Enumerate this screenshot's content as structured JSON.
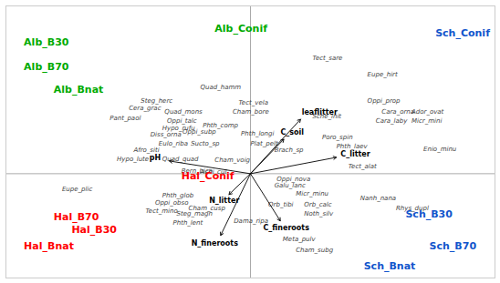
{
  "chart_data": {
    "type": "biplot",
    "xlim": [
      -2.05,
      2.05
    ],
    "ylim": [
      -1.15,
      1.85
    ],
    "xticks": [
      0
    ],
    "yticks": [
      0
    ],
    "grid": true,
    "tick_labels": false,
    "arrow_origin": [
      0,
      0
    ],
    "sites": [
      {
        "text": "Alb_B30",
        "x": -1.9,
        "y": 1.45,
        "color": "#00aa00"
      },
      {
        "text": "Alb_B70",
        "x": -1.9,
        "y": 1.18,
        "color": "#00aa00"
      },
      {
        "text": "Alb_Bnat",
        "x": -1.65,
        "y": 0.93,
        "color": "#00aa00"
      },
      {
        "text": "Alb_Conif",
        "x": -0.3,
        "y": 1.6,
        "color": "#00aa00"
      },
      {
        "text": "Hal_Conif",
        "x": -0.58,
        "y": -0.03,
        "color": "#ff0000"
      },
      {
        "text": "Hal_B70",
        "x": -1.65,
        "y": -0.48,
        "color": "#ff0000"
      },
      {
        "text": "Hal_B30",
        "x": -1.5,
        "y": -0.62,
        "color": "#ff0000"
      },
      {
        "text": "Hal_Bnat",
        "x": -1.9,
        "y": -0.8,
        "color": "#ff0000"
      },
      {
        "text": "Sch_Conif",
        "x": 1.55,
        "y": 1.55,
        "color": "#1155cc"
      },
      {
        "text": "Sch_B30",
        "x": 1.3,
        "y": -0.45,
        "color": "#1155cc"
      },
      {
        "text": "Sch_B70",
        "x": 1.5,
        "y": -0.8,
        "color": "#1155cc"
      },
      {
        "text": "Sch_Bnat",
        "x": 0.95,
        "y": -1.02,
        "color": "#1155cc"
      }
    ],
    "arrows": [
      {
        "label": "leaflitter",
        "x": 0.42,
        "y": 0.6,
        "label_x": 0.58,
        "label_y": 0.68
      },
      {
        "label": "C_soil",
        "x": 0.28,
        "y": 0.38,
        "label_x": 0.35,
        "label_y": 0.46
      },
      {
        "label": "C_litter",
        "x": 0.72,
        "y": 0.18,
        "label_x": 0.88,
        "label_y": 0.22
      },
      {
        "label": "pH",
        "x": -0.68,
        "y": 0.14,
        "label_x": -0.8,
        "label_y": 0.18
      },
      {
        "label": "N_litter",
        "x": -0.18,
        "y": -0.23,
        "label_x": -0.22,
        "label_y": -0.3
      },
      {
        "label": "C_fineroots",
        "x": 0.25,
        "y": -0.52,
        "label_x": 0.3,
        "label_y": -0.6
      },
      {
        "label": "N_fineroots",
        "x": -0.25,
        "y": -0.68,
        "label_x": -0.3,
        "label_y": -0.77
      }
    ],
    "species": [
      {
        "text": "Tect_sare",
        "x": 0.52,
        "y": 1.28
      },
      {
        "text": "Eupe_hirt",
        "x": 0.98,
        "y": 1.1
      },
      {
        "text": "Oppi_prop",
        "x": 0.98,
        "y": 0.8
      },
      {
        "text": "Cara_orna",
        "x": 1.1,
        "y": 0.68
      },
      {
        "text": "Ador_ovat",
        "x": 1.35,
        "y": 0.68
      },
      {
        "text": "Cara_laby",
        "x": 1.05,
        "y": 0.58
      },
      {
        "text": "Micr_mini",
        "x": 1.35,
        "y": 0.58
      },
      {
        "text": "Sche_init",
        "x": 0.52,
        "y": 0.63
      },
      {
        "text": "Poro_spin",
        "x": 0.6,
        "y": 0.4
      },
      {
        "text": "Phth_laev",
        "x": 0.72,
        "y": 0.3
      },
      {
        "text": "Enio_minu",
        "x": 1.45,
        "y": 0.27
      },
      {
        "text": "Tect_alat",
        "x": 0.82,
        "y": 0.08
      },
      {
        "text": "Quad_hamm",
        "x": -0.42,
        "y": 0.95
      },
      {
        "text": "Tect_vela",
        "x": -0.1,
        "y": 0.78
      },
      {
        "text": "Cham_bore",
        "x": -0.15,
        "y": 0.68
      },
      {
        "text": "Steg_herc",
        "x": -0.92,
        "y": 0.8
      },
      {
        "text": "Cera_grac",
        "x": -1.02,
        "y": 0.72
      },
      {
        "text": "Quad_mons",
        "x": -0.72,
        "y": 0.68
      },
      {
        "text": "Pant_paol",
        "x": -1.18,
        "y": 0.61
      },
      {
        "text": "Oppi_talc",
        "x": -0.7,
        "y": 0.58
      },
      {
        "text": "Hypo_rufu",
        "x": -0.74,
        "y": 0.5
      },
      {
        "text": "Phth_comp",
        "x": -0.4,
        "y": 0.53
      },
      {
        "text": "Diss_orna",
        "x": -0.84,
        "y": 0.43
      },
      {
        "text": "Oppi_subp",
        "x": -0.57,
        "y": 0.46
      },
      {
        "text": "Eulo_riba",
        "x": -0.77,
        "y": 0.33
      },
      {
        "text": "Sucto_sp",
        "x": -0.5,
        "y": 0.33
      },
      {
        "text": "Phth_longi",
        "x": -0.08,
        "y": 0.44
      },
      {
        "text": "Plat_pelt",
        "x": 0.0,
        "y": 0.33
      },
      {
        "text": "Brach_sp",
        "x": 0.2,
        "y": 0.26
      },
      {
        "text": "Afro_siti",
        "x": -0.98,
        "y": 0.26
      },
      {
        "text": "Hypo_lute",
        "x": -1.12,
        "y": 0.16
      },
      {
        "text": "Quad_quad",
        "x": -0.74,
        "y": 0.16
      },
      {
        "text": "Cham_voig",
        "x": -0.3,
        "y": 0.15
      },
      {
        "text": "Bern_bica",
        "x": -0.58,
        "y": 0.03
      },
      {
        "text": "Achi_cul",
        "x": -0.42,
        "y": 0.02
      },
      {
        "text": "Oppi_nova",
        "x": 0.22,
        "y": -0.06
      },
      {
        "text": "Galu_lanc",
        "x": 0.2,
        "y": -0.13
      },
      {
        "text": "Eupe_plic",
        "x": -1.58,
        "y": -0.17
      },
      {
        "text": "Phth_glob",
        "x": -0.74,
        "y": -0.24
      },
      {
        "text": "Oppi_obso",
        "x": -0.8,
        "y": -0.32
      },
      {
        "text": "Micr_minu",
        "x": 0.38,
        "y": -0.22
      },
      {
        "text": "Orb_tibi",
        "x": 0.15,
        "y": -0.34
      },
      {
        "text": "Orb_calc",
        "x": 0.45,
        "y": -0.34
      },
      {
        "text": "Nanh_nana",
        "x": 0.92,
        "y": -0.27
      },
      {
        "text": "Rhys_dupl",
        "x": 1.22,
        "y": -0.38
      },
      {
        "text": "Noth_silv",
        "x": 0.45,
        "y": -0.44
      },
      {
        "text": "Tect_mino",
        "x": -0.88,
        "y": -0.41
      },
      {
        "text": "Steg_magn",
        "x": -0.62,
        "y": -0.44
      },
      {
        "text": "Cham_cusp",
        "x": -0.52,
        "y": -0.38
      },
      {
        "text": "Phth_lent",
        "x": -0.65,
        "y": -0.54
      },
      {
        "text": "Dama_ripa",
        "x": -0.14,
        "y": -0.52
      },
      {
        "text": "Meta_pulv",
        "x": 0.27,
        "y": -0.72
      },
      {
        "text": "Cham_subg",
        "x": 0.38,
        "y": -0.84
      }
    ]
  }
}
